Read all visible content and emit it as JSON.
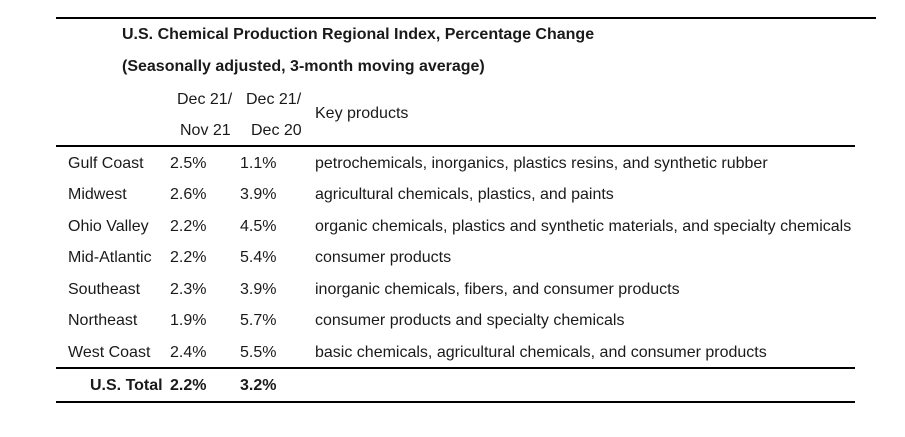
{
  "table": {
    "title": "U.S. Chemical Production Regional Index, Percentage Change",
    "subtitle": "(Seasonally adjusted, 3-month moving average)",
    "columns": {
      "col1_line1": "Dec 21/",
      "col1_line2": "Nov 21",
      "col2_line1": "Dec 21/",
      "col2_line2": "Dec 20",
      "products": "Key products"
    },
    "rows": [
      {
        "region": "Gulf Coast",
        "mom": "2.5%",
        "yoy": "1.1%",
        "products": "petrochemicals, inorganics, plastics resins, and synthetic rubber"
      },
      {
        "region": "Midwest",
        "mom": "2.6%",
        "yoy": "3.9%",
        "products": "agricultural chemicals, plastics, and paints"
      },
      {
        "region": "Ohio Valley",
        "mom": "2.2%",
        "yoy": "4.5%",
        "products": "organic chemicals, plastics and synthetic materials, and specialty chemicals"
      },
      {
        "region": "Mid-Atlantic",
        "mom": "2.2%",
        "yoy": "5.4%",
        "products": "consumer products"
      },
      {
        "region": "Southeast",
        "mom": "2.3%",
        "yoy": "3.9%",
        "products": "inorganic chemicals, fibers, and consumer products"
      },
      {
        "region": "Northeast",
        "mom": "1.9%",
        "yoy": "5.7%",
        "products": "consumer products and specialty chemicals"
      },
      {
        "region": "West Coast",
        "mom": "2.4%",
        "yoy": "5.5%",
        "products": "basic chemicals, agricultural chemicals, and consumer products"
      }
    ],
    "total": {
      "label": "U.S. Total",
      "mom": "2.2%",
      "yoy": "3.2%"
    }
  }
}
